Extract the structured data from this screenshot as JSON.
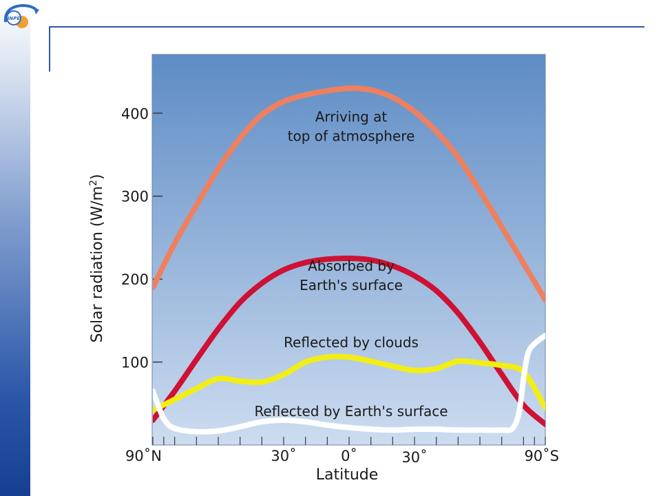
{
  "logo": {
    "text": "INPE",
    "icon": "inpe-orbit-logo-icon",
    "colors": {
      "swoosh": "#2b6cc4",
      "sun": "#f0a030"
    }
  },
  "colors": {
    "plot_top": "#5e8cc5",
    "plot_bottom": "#cddcf0",
    "frame": "#2c5aa0"
  },
  "chart_data": {
    "type": "line",
    "xlabel": "Latitude",
    "ylabel": "Solar radiation (W/m²)",
    "ylabel_main": "Solar radiation (W/m",
    "ylabel_sup": "2",
    "ylabel_end": ")",
    "xlim": [
      90,
      -90
    ],
    "ylim": [
      0,
      470
    ],
    "y_ticks": [
      100,
      200,
      300,
      400
    ],
    "y_tick_labels": [
      "100",
      "200",
      "300",
      "400"
    ],
    "x_tick_labels": [
      {
        "value": 90,
        "text": "90˚N"
      },
      {
        "value": 30,
        "text": "30˚"
      },
      {
        "value": 0,
        "text": "0˚"
      },
      {
        "value": -30,
        "text": "30˚"
      },
      {
        "value": -90,
        "text": "90˚S"
      }
    ],
    "x_minor_ticks": [
      90,
      85,
      80,
      70,
      60,
      50,
      40,
      30,
      20,
      10,
      0,
      -10,
      -20,
      -30,
      -40,
      -50,
      -60,
      -70,
      -80,
      -85,
      -90
    ],
    "series": [
      {
        "name": "Arriving at top of atmosphere",
        "label_lines": [
          "Arriving at",
          "top of atmosphere"
        ],
        "label_at": [
          0,
          390
        ],
        "color": "#ee8060",
        "points": [
          [
            90,
            190
          ],
          [
            80,
            243
          ],
          [
            70,
            289
          ],
          [
            60,
            333
          ],
          [
            50,
            370
          ],
          [
            40,
            398
          ],
          [
            30,
            414
          ],
          [
            20,
            422
          ],
          [
            10,
            427
          ],
          [
            0,
            430
          ],
          [
            -10,
            428
          ],
          [
            -20,
            419
          ],
          [
            -30,
            402
          ],
          [
            -40,
            378
          ],
          [
            -50,
            347
          ],
          [
            -60,
            306
          ],
          [
            -70,
            263
          ],
          [
            -80,
            219
          ],
          [
            -90,
            175
          ]
        ]
      },
      {
        "name": "Absorbed by Earth's surface",
        "label_lines": [
          "Absorbed by",
          "Earth's surface"
        ],
        "label_at": [
          0,
          210
        ],
        "color": "#cf1133",
        "points": [
          [
            90,
            30
          ],
          [
            80,
            65
          ],
          [
            70,
            103
          ],
          [
            60,
            140
          ],
          [
            50,
            172
          ],
          [
            40,
            195
          ],
          [
            30,
            211
          ],
          [
            20,
            220
          ],
          [
            10,
            224
          ],
          [
            0,
            225
          ],
          [
            -10,
            223
          ],
          [
            -20,
            216
          ],
          [
            -30,
            204
          ],
          [
            -40,
            186
          ],
          [
            -50,
            159
          ],
          [
            -60,
            124
          ],
          [
            -70,
            85
          ],
          [
            -80,
            48
          ],
          [
            -90,
            25
          ]
        ]
      },
      {
        "name": "Reflected by clouds",
        "label_lines": [
          "Reflected by clouds"
        ],
        "label_at": [
          0,
          118
        ],
        "color": "#f2ee15",
        "points": [
          [
            90,
            42
          ],
          [
            80,
            55
          ],
          [
            70,
            68
          ],
          [
            60,
            80
          ],
          [
            50,
            77
          ],
          [
            40,
            76
          ],
          [
            30,
            85
          ],
          [
            20,
            100
          ],
          [
            10,
            106
          ],
          [
            0,
            106
          ],
          [
            -10,
            101
          ],
          [
            -20,
            95
          ],
          [
            -30,
            90
          ],
          [
            -40,
            92
          ],
          [
            -50,
            101
          ],
          [
            -60,
            99
          ],
          [
            -70,
            96
          ],
          [
            -80,
            88
          ],
          [
            -90,
            45
          ]
        ]
      },
      {
        "name": "Reflected by Earth's surface",
        "label_lines": [
          "Reflected by Earth's surface"
        ],
        "label_at": [
          0,
          35
        ],
        "color": "#ffffff",
        "points": [
          [
            90,
            65
          ],
          [
            85,
            32
          ],
          [
            80,
            20
          ],
          [
            70,
            16
          ],
          [
            60,
            17
          ],
          [
            50,
            22
          ],
          [
            40,
            28
          ],
          [
            30,
            30
          ],
          [
            20,
            28
          ],
          [
            10,
            24
          ],
          [
            0,
            21
          ],
          [
            -10,
            19
          ],
          [
            -20,
            18
          ],
          [
            -30,
            19
          ],
          [
            -40,
            19
          ],
          [
            -50,
            18
          ],
          [
            -60,
            18
          ],
          [
            -70,
            18
          ],
          [
            -75,
            20
          ],
          [
            -78,
            40
          ],
          [
            -80,
            80
          ],
          [
            -82,
            110
          ],
          [
            -85,
            122
          ],
          [
            -90,
            132
          ]
        ]
      }
    ]
  }
}
